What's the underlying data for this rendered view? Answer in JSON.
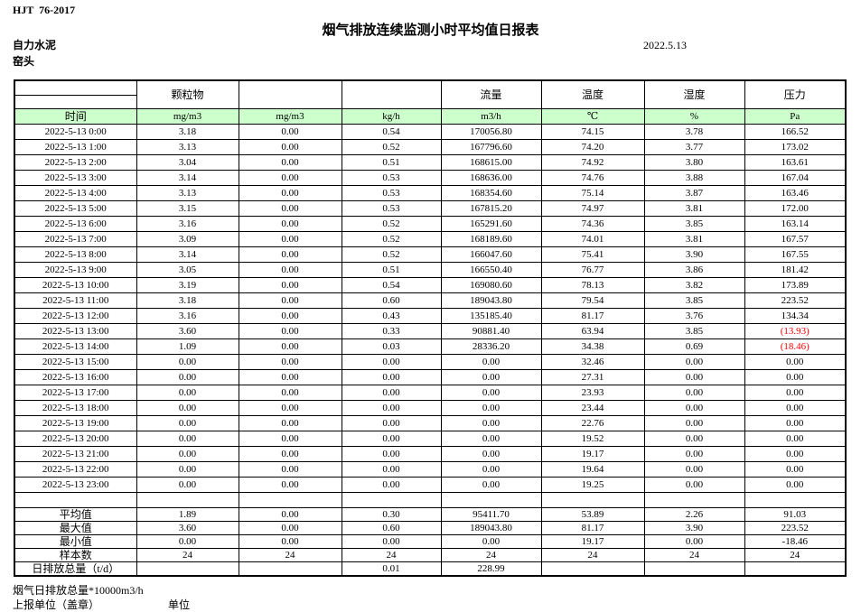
{
  "page": {
    "standard_code": "HJT  76-2017",
    "title": "烟气排放连续监测小时平均值日报表",
    "company": "自力水泥",
    "location": "窑头",
    "date": "2022.5.13"
  },
  "table": {
    "header_groups": {
      "particulate": "颗粒物",
      "flow": "流量",
      "temperature": "温度",
      "humidity": "湿度",
      "pressure": "压力"
    },
    "unit_row": {
      "time": "时间",
      "units": [
        "mg/m3",
        "mg/m3",
        "kg/h",
        "m3/h",
        "℃",
        "%",
        "Pa"
      ]
    },
    "colors": {
      "unit_row_bg": "#CCFFCC",
      "negative_value": "#FF0000"
    },
    "rows": [
      {
        "time": "2022-5-13 0:00",
        "values": [
          "3.18",
          "0.00",
          "0.54",
          "170056.80",
          "74.15",
          "3.78",
          "166.52"
        ]
      },
      {
        "time": "2022-5-13 1:00",
        "values": [
          "3.13",
          "0.00",
          "0.52",
          "167796.60",
          "74.20",
          "3.77",
          "173.02"
        ]
      },
      {
        "time": "2022-5-13 2:00",
        "values": [
          "3.04",
          "0.00",
          "0.51",
          "168615.00",
          "74.92",
          "3.80",
          "163.61"
        ]
      },
      {
        "time": "2022-5-13 3:00",
        "values": [
          "3.14",
          "0.00",
          "0.53",
          "168636.00",
          "74.76",
          "3.88",
          "167.04"
        ]
      },
      {
        "time": "2022-5-13 4:00",
        "values": [
          "3.13",
          "0.00",
          "0.53",
          "168354.60",
          "75.14",
          "3.87",
          "163.46"
        ]
      },
      {
        "time": "2022-5-13 5:00",
        "values": [
          "3.15",
          "0.00",
          "0.53",
          "167815.20",
          "74.97",
          "3.81",
          "172.00"
        ]
      },
      {
        "time": "2022-5-13 6:00",
        "values": [
          "3.16",
          "0.00",
          "0.52",
          "165291.60",
          "74.36",
          "3.85",
          "163.14"
        ]
      },
      {
        "time": "2022-5-13 7:00",
        "values": [
          "3.09",
          "0.00",
          "0.52",
          "168189.60",
          "74.01",
          "3.81",
          "167.57"
        ]
      },
      {
        "time": "2022-5-13 8:00",
        "values": [
          "3.14",
          "0.00",
          "0.52",
          "166047.60",
          "75.41",
          "3.90",
          "167.55"
        ]
      },
      {
        "time": "2022-5-13 9:00",
        "values": [
          "3.05",
          "0.00",
          "0.51",
          "166550.40",
          "76.77",
          "3.86",
          "181.42"
        ]
      },
      {
        "time": "2022-5-13 10:00",
        "values": [
          "3.19",
          "0.00",
          "0.54",
          "169080.60",
          "78.13",
          "3.82",
          "173.89"
        ]
      },
      {
        "time": "2022-5-13 11:00",
        "values": [
          "3.18",
          "0.00",
          "0.60",
          "189043.80",
          "79.54",
          "3.85",
          "223.52"
        ]
      },
      {
        "time": "2022-5-13 12:00",
        "values": [
          "3.16",
          "0.00",
          "0.43",
          "135185.40",
          "81.17",
          "3.76",
          "134.34"
        ]
      },
      {
        "time": "2022-5-13 13:00",
        "values": [
          "3.60",
          "0.00",
          "0.33",
          "90881.40",
          "63.94",
          "3.85",
          "(13.93)"
        ]
      },
      {
        "time": "2022-5-13 14:00",
        "values": [
          "1.09",
          "0.00",
          "0.03",
          "28336.20",
          "34.38",
          "0.69",
          "(18.46)"
        ]
      },
      {
        "time": "2022-5-13 15:00",
        "values": [
          "0.00",
          "0.00",
          "0.00",
          "0.00",
          "32.46",
          "0.00",
          "0.00"
        ]
      },
      {
        "time": "2022-5-13 16:00",
        "values": [
          "0.00",
          "0.00",
          "0.00",
          "0.00",
          "27.31",
          "0.00",
          "0.00"
        ]
      },
      {
        "time": "2022-5-13 17:00",
        "values": [
          "0.00",
          "0.00",
          "0.00",
          "0.00",
          "23.93",
          "0.00",
          "0.00"
        ]
      },
      {
        "time": "2022-5-13 18:00",
        "values": [
          "0.00",
          "0.00",
          "0.00",
          "0.00",
          "23.44",
          "0.00",
          "0.00"
        ]
      },
      {
        "time": "2022-5-13 19:00",
        "values": [
          "0.00",
          "0.00",
          "0.00",
          "0.00",
          "22.76",
          "0.00",
          "0.00"
        ]
      },
      {
        "time": "2022-5-13 20:00",
        "values": [
          "0.00",
          "0.00",
          "0.00",
          "0.00",
          "19.52",
          "0.00",
          "0.00"
        ]
      },
      {
        "time": "2022-5-13 21:00",
        "values": [
          "0.00",
          "0.00",
          "0.00",
          "0.00",
          "19.17",
          "0.00",
          "0.00"
        ]
      },
      {
        "time": "2022-5-13 22:00",
        "values": [
          "0.00",
          "0.00",
          "0.00",
          "0.00",
          "19.64",
          "0.00",
          "0.00"
        ]
      },
      {
        "time": "2022-5-13 23:00",
        "values": [
          "0.00",
          "0.00",
          "0.00",
          "0.00",
          "19.25",
          "0.00",
          "0.00"
        ]
      }
    ],
    "summary_rows": [
      {
        "label": "平均值",
        "values": [
          "1.89",
          "0.00",
          "0.30",
          "95411.70",
          "53.89",
          "2.26",
          "91.03"
        ]
      },
      {
        "label": "最大值",
        "values": [
          "3.60",
          "0.00",
          "0.60",
          "189043.80",
          "81.17",
          "3.90",
          "223.52"
        ]
      },
      {
        "label": "最小值",
        "values": [
          "0.00",
          "0.00",
          "0.00",
          "0.00",
          "19.17",
          "0.00",
          "-18.46"
        ]
      },
      {
        "label": "样本数",
        "values": [
          "24",
          "24",
          "24",
          "24",
          "24",
          "24",
          "24"
        ]
      },
      {
        "label": "日排放总量（t/d）",
        "values": [
          "",
          "",
          "0.01",
          "228.99",
          "",
          "",
          ""
        ]
      }
    ]
  },
  "footer": {
    "note": "烟气日排放总量*10000m3/h",
    "report_unit_label": "上报单位（盖章）",
    "unit_label": "单位"
  }
}
